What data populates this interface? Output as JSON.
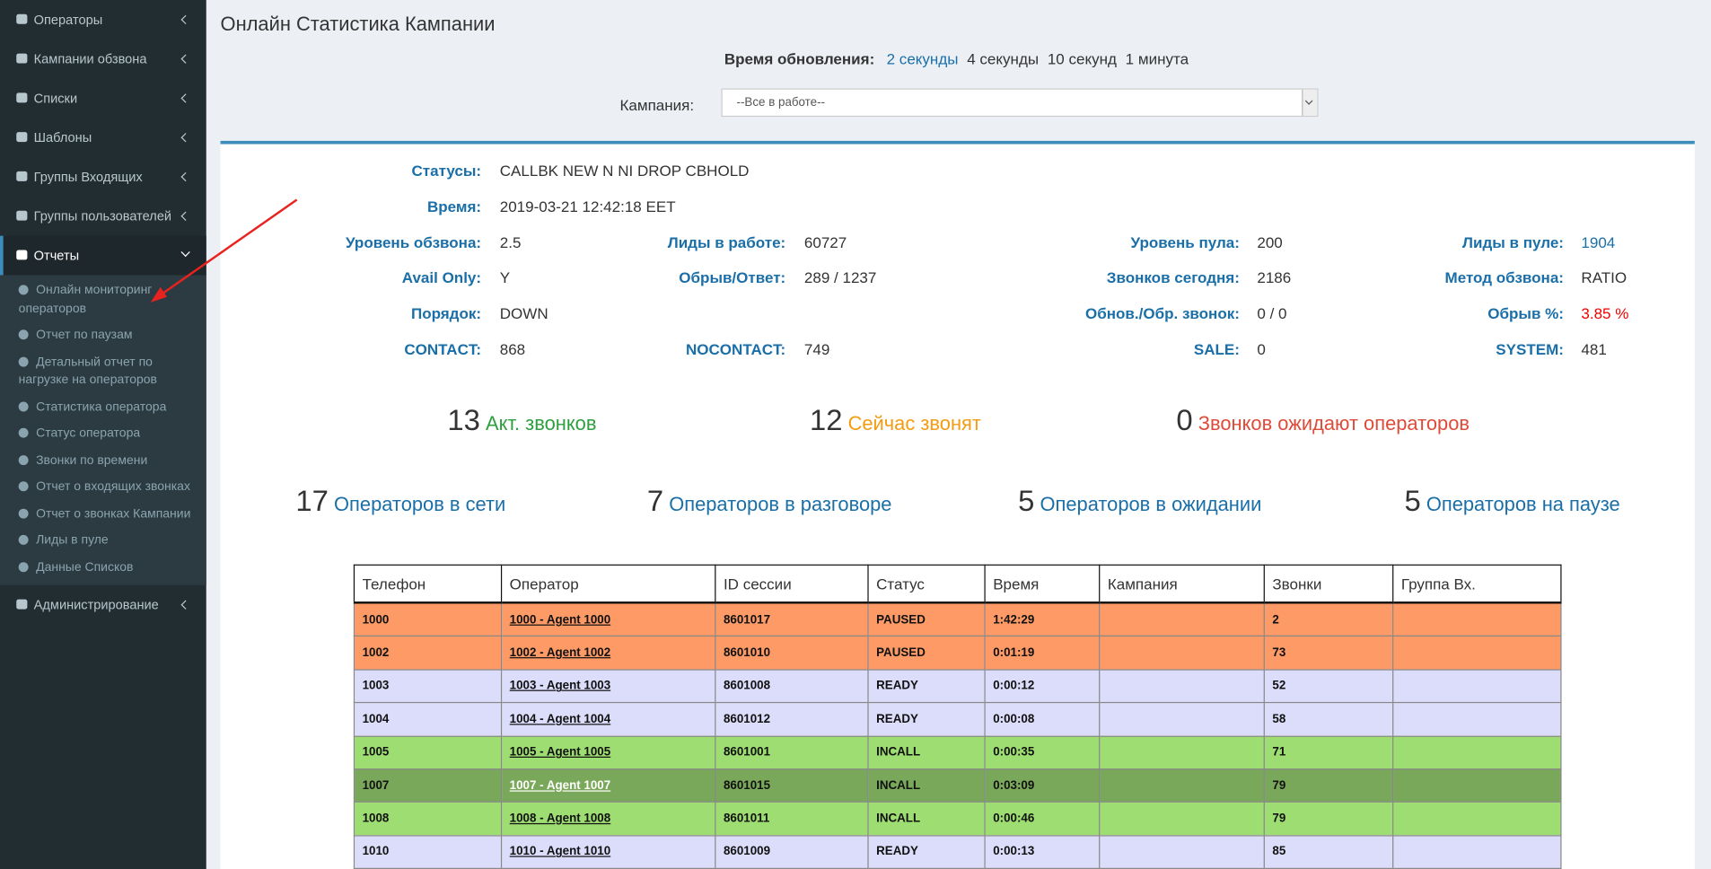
{
  "sidebar": {
    "menu": [
      {
        "label": "Операторы"
      },
      {
        "label": "Кампании обзвона"
      },
      {
        "label": "Списки"
      },
      {
        "label": "Шаблоны"
      },
      {
        "label": "Группы Входящих"
      },
      {
        "label": "Группы пользователей"
      },
      {
        "label": "Отчеты",
        "children": [
          "Онлайн мониторинг операторов",
          "Отчет по паузам",
          "Детальный отчет по нагрузке на операторов",
          "Статистика оператора",
          "Статус оператора",
          "Звонки по времени",
          "Отчет о входящих звонках",
          "Отчет о звонках Кампании",
          "Лиды в пуле",
          "Данные Списков"
        ]
      },
      {
        "label": "Администрирование"
      }
    ]
  },
  "header": {
    "title": "Онлайн Статистика Кампании"
  },
  "refresh": {
    "label": "Время обновления:",
    "options": [
      "2 секунды",
      "4 секунды",
      "10 секунд",
      "1 минута"
    ]
  },
  "campaign": {
    "label": "Кампания:",
    "selected": "--Все в работе--"
  },
  "stats": [
    [
      {
        "label": "Статусы:",
        "value": "CALLBK NEW N NI DROP CBHOLD"
      }
    ],
    [
      {
        "label": "Время:",
        "value": "2019-03-21 12:42:18 EET"
      }
    ],
    [
      {
        "label": "Уровень обзвона:",
        "value": "2.5"
      },
      {
        "label": "Лиды в работе:",
        "value": "60727"
      },
      {
        "label": "Уровень пула:",
        "value": "200"
      },
      {
        "label": "Лиды в пуле:",
        "value": "1904"
      }
    ],
    [
      {
        "label": "Avail Only:",
        "value": "Y"
      },
      {
        "label": "Обрыв/Ответ:",
        "value": "289 / 1237"
      },
      {
        "label": "Звонков сегодня:",
        "value": "2186"
      },
      {
        "label": "Метод обзвона:",
        "value": "RATIO"
      }
    ],
    [
      {
        "label": "Порядок:",
        "value": "DOWN"
      },
      null,
      {
        "label": "Обнов./Обр. звонок:",
        "value": "0 / 0"
      },
      {
        "label": "Обрыв %:",
        "value": "3.85 %"
      }
    ],
    [
      {
        "label": "CONTACT:",
        "value": "868"
      },
      {
        "label": "NOCONTACT:",
        "value": "749"
      },
      {
        "label": "SALE:",
        "value": "0"
      },
      {
        "label": "SYSTEM:",
        "value": "481"
      }
    ]
  ],
  "counters": [
    [
      {
        "value": "13",
        "label": "Акт. звонков",
        "color": "#2e9f3e"
      },
      {
        "value": "12",
        "label": "Сейчас звонят",
        "color": "#f39c12"
      },
      {
        "value": "0",
        "label": "Звонков ожидают операторов",
        "color": "#dd4b39"
      }
    ],
    [
      {
        "value": "17",
        "label": "Операторов в сети",
        "color": "#1a6fa8"
      },
      {
        "value": "7",
        "label": "Операторов в разговоре",
        "color": "#1a6fa8"
      },
      {
        "value": "5",
        "label": "Операторов в ожидании",
        "color": "#1a6fa8"
      },
      {
        "value": "5",
        "label": "Операторов на паузе",
        "color": "#1a6fa8"
      }
    ]
  ],
  "table": {
    "columns": [
      "Телефон",
      "Оператор",
      "ID сессии",
      "Статус",
      "Время",
      "Кампания",
      "Звонки",
      "Группа Вх."
    ],
    "rows": [
      [
        "1000",
        "1000 - Agent 1000",
        "8601017",
        "PAUSED",
        "1:42:29",
        null,
        "2",
        null
      ],
      [
        "1002",
        "1002 - Agent 1002",
        "8601010",
        "PAUSED",
        "0:01:19",
        null,
        "73",
        null
      ],
      [
        "1003",
        "1003 - Agent 1003",
        "8601008",
        "READY",
        "0:00:12",
        null,
        "52",
        null
      ],
      [
        "1004",
        "1004 - Agent 1004",
        "8601012",
        "READY",
        "0:00:08",
        null,
        "58",
        null
      ],
      [
        "1005",
        "1005 - Agent 1005",
        "8601001",
        "INCALL",
        "0:00:35",
        null,
        "71",
        null
      ],
      [
        "1007",
        "1007 - Agent 1007",
        "8601015",
        "INCALL",
        "0:03:09",
        null,
        "79",
        null
      ],
      [
        "1008",
        "1008 - Agent 1008",
        "8601011",
        "INCALL",
        "0:00:46",
        null,
        "79",
        null
      ],
      [
        "1010",
        "1010 - Agent 1010",
        "8601009",
        "READY",
        "0:00:13",
        null,
        "85",
        null
      ]
    ],
    "row_colors": [
      "#fd9a66",
      "#fd9a66",
      "#dcdcfb",
      "#dcdcfb",
      "#9edd72",
      "#7aa85a",
      "#9edd72",
      "#dcdcfb"
    ]
  }
}
